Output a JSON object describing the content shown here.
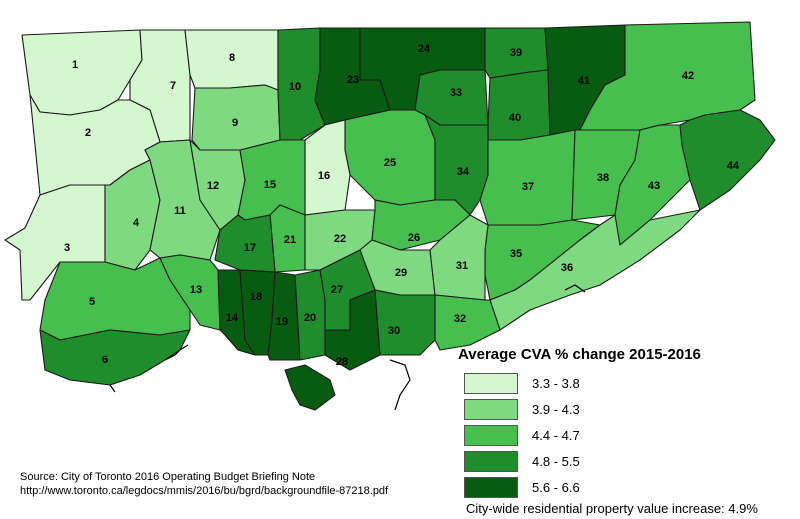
{
  "colors": {
    "c1": "#d4f7cf",
    "c2": "#7fd981",
    "c3": "#46bf4f",
    "c4": "#1f8d2c",
    "c5": "#075c12"
  },
  "legend": {
    "title": "Average CVA % change 2015-2016",
    "classes": [
      {
        "label": "3.3 - 3.8",
        "color": "#d4f7cf"
      },
      {
        "label": "3.9 - 4.3",
        "color": "#7fd981"
      },
      {
        "label": "4.4 - 4.7",
        "color": "#46bf4f"
      },
      {
        "label": "4.8 - 5.5",
        "color": "#1f8d2c"
      },
      {
        "label": "5.6 - 6.6",
        "color": "#075c12"
      }
    ]
  },
  "wards": [
    {
      "id": "1",
      "class": 1
    },
    {
      "id": "2",
      "class": 1
    },
    {
      "id": "3",
      "class": 1
    },
    {
      "id": "4",
      "class": 2
    },
    {
      "id": "5",
      "class": 3
    },
    {
      "id": "6",
      "class": 4
    },
    {
      "id": "7",
      "class": 1
    },
    {
      "id": "8",
      "class": 1
    },
    {
      "id": "9",
      "class": 2
    },
    {
      "id": "10",
      "class": 4
    },
    {
      "id": "11",
      "class": 2
    },
    {
      "id": "12",
      "class": 2
    },
    {
      "id": "13",
      "class": 3
    },
    {
      "id": "14",
      "class": 5
    },
    {
      "id": "15",
      "class": 3
    },
    {
      "id": "16",
      "class": 1
    },
    {
      "id": "17",
      "class": 4
    },
    {
      "id": "18",
      "class": 5
    },
    {
      "id": "19",
      "class": 5
    },
    {
      "id": "20",
      "class": 4
    },
    {
      "id": "21",
      "class": 3
    },
    {
      "id": "22",
      "class": 2
    },
    {
      "id": "23",
      "class": 5
    },
    {
      "id": "24",
      "class": 5
    },
    {
      "id": "25",
      "class": 3
    },
    {
      "id": "26",
      "class": 3
    },
    {
      "id": "27",
      "class": 4
    },
    {
      "id": "28",
      "class": 5
    },
    {
      "id": "29",
      "class": 2
    },
    {
      "id": "30",
      "class": 4
    },
    {
      "id": "31",
      "class": 2
    },
    {
      "id": "32",
      "class": 3
    },
    {
      "id": "33",
      "class": 4
    },
    {
      "id": "34",
      "class": 4
    },
    {
      "id": "35",
      "class": 3
    },
    {
      "id": "36",
      "class": 2
    },
    {
      "id": "37",
      "class": 3
    },
    {
      "id": "38",
      "class": 3
    },
    {
      "id": "39",
      "class": 4
    },
    {
      "id": "40",
      "class": 4
    },
    {
      "id": "41",
      "class": 5
    },
    {
      "id": "42",
      "class": 3
    },
    {
      "id": "43",
      "class": 3
    },
    {
      "id": "44",
      "class": 4
    }
  ],
  "source": {
    "line1": "Source: City of Toronto 2016 Operating Budget Briefing Note",
    "line2": "http://www.toronto.ca/legdocs/mmis/2016/bu/bgrd/backgroundfile-87218.pdf"
  },
  "summary": "City-wide residential property value increase: 4.9%"
}
